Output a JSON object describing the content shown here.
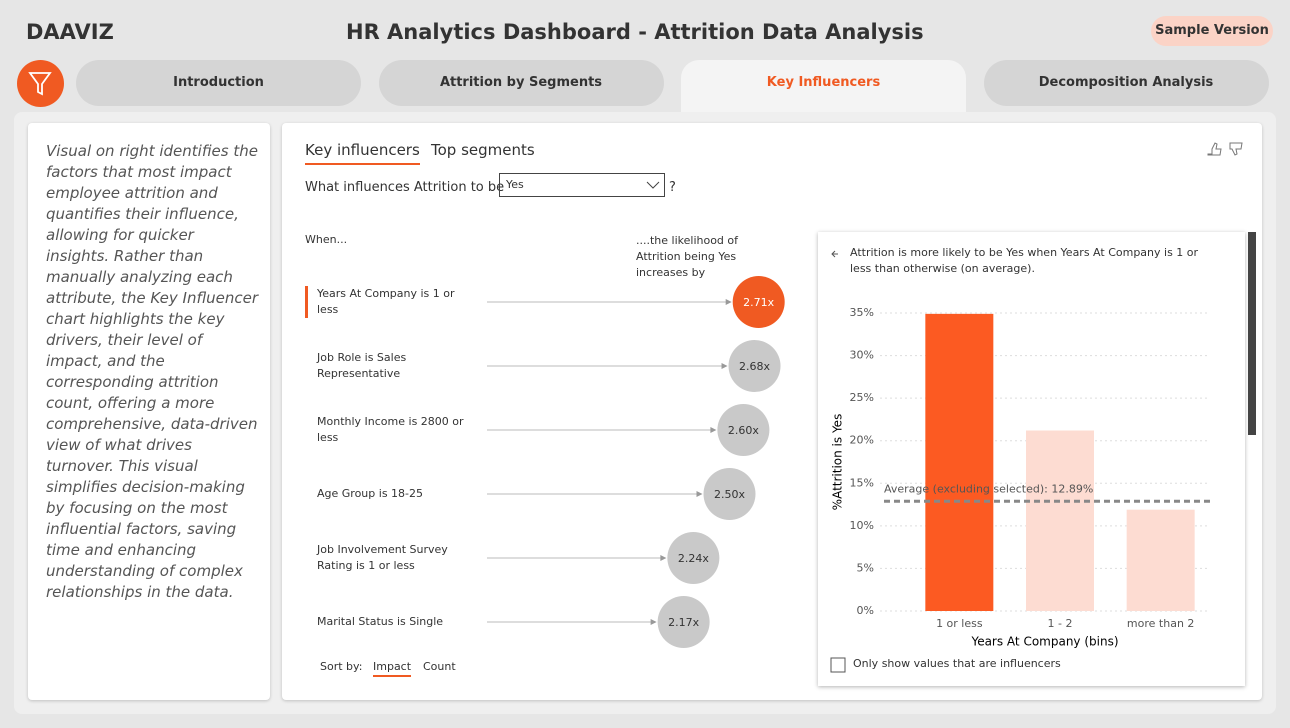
{
  "header": {
    "brand": "DAAVIZ",
    "title": "HR Analytics Dashboard - Attrition Data Analysis",
    "badge": "Sample Version"
  },
  "tabs": [
    "Introduction",
    "Attrition by Segments",
    "Key Influencers",
    "Decomposition Analysis"
  ],
  "active_tab": 2,
  "description": "Visual on right identifies the factors that most impact employee attrition and quantifies their influence, allowing for quicker insights. Rather than manually analyzing each attribute, the Key Influencer chart highlights the key drivers, their level of impact, and the corresponding attrition count, offering a more comprehensive, data-driven view of what drives turnover. This visual simplifies decision-making by focusing on the most influential factors, saving time and enhancing understanding of complex relationships in the data.",
  "influencers": {
    "tabs": [
      "Key influencers",
      "Top segments"
    ],
    "question": "What influences Attrition to be",
    "dropdown": "Yes",
    "question_mark": "?",
    "when": "When...",
    "likelihood": "....the likelihood of Attrition being Yes increases by",
    "selected": 0,
    "items": [
      {
        "label": "Years At Company is 1 or less",
        "value": 2.71,
        "value_label": "2.71x",
        "color": "#f05a22"
      },
      {
        "label": "Job Role is Sales Representative",
        "value": 2.68,
        "value_label": "2.68x",
        "color": "#c9c9c9"
      },
      {
        "label": "Monthly Income is 2800 or less",
        "value": 2.6,
        "value_label": "2.60x",
        "color": "#c9c9c9"
      },
      {
        "label": "Age Group is 18-25",
        "value": 2.5,
        "value_label": "2.50x",
        "color": "#c9c9c9"
      },
      {
        "label": "Job Involvement Survey Rating is 1 or less",
        "value": 2.24,
        "value_label": "2.24x",
        "color": "#c9c9c9"
      },
      {
        "label": "Marital Status is Single",
        "value": 2.17,
        "value_label": "2.17x",
        "color": "#c9c9c9"
      }
    ],
    "sort_by": "Sort by:",
    "sort_options": [
      "Impact",
      "Count"
    ],
    "active_sort": 0
  },
  "chart_data": {
    "type": "bar",
    "description": "Attrition is more likely to be Yes when Years At Company is 1 or less than otherwise (on average).",
    "categories": [
      "1 or less",
      "1 - 2",
      "more than 2"
    ],
    "values": [
      34.9,
      21.2,
      11.9
    ],
    "colors": [
      "#fc5a22",
      "#fddcd2",
      "#fddcd2"
    ],
    "ylim": [
      0,
      35
    ],
    "yticks": [
      {
        "value": 0,
        "label": "0%"
      },
      {
        "value": 5,
        "label": "5%"
      },
      {
        "value": 10,
        "label": "10%"
      },
      {
        "value": 15,
        "label": "15%"
      },
      {
        "value": 20,
        "label": "20%"
      },
      {
        "value": 25,
        "label": "25%"
      },
      {
        "value": 30,
        "label": "30%"
      },
      {
        "value": 35,
        "label": "35%"
      }
    ],
    "grid": true,
    "y_label": "%Attrition is Yes",
    "x_label": "Years At Company (bins)",
    "reference_line": {
      "value": 12.89,
      "label": "Average (excluding selected): 12.89%"
    },
    "checkbox": "Only show values that are influencers"
  }
}
